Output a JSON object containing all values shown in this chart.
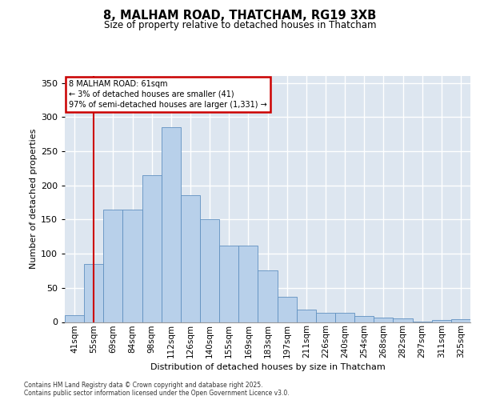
{
  "title1": "8, MALHAM ROAD, THATCHAM, RG19 3XB",
  "title2": "Size of property relative to detached houses in Thatcham",
  "xlabel": "Distribution of detached houses by size in Thatcham",
  "ylabel": "Number of detached properties",
  "categories": [
    "41sqm",
    "55sqm",
    "69sqm",
    "84sqm",
    "98sqm",
    "112sqm",
    "126sqm",
    "140sqm",
    "155sqm",
    "169sqm",
    "183sqm",
    "197sqm",
    "211sqm",
    "226sqm",
    "240sqm",
    "254sqm",
    "268sqm",
    "282sqm",
    "297sqm",
    "311sqm",
    "325sqm"
  ],
  "bar_heights": [
    10,
    85,
    165,
    165,
    215,
    285,
    185,
    150,
    112,
    112,
    75,
    37,
    18,
    14,
    14,
    9,
    6,
    5,
    1,
    3,
    4
  ],
  "bar_color": "#b8d0ea",
  "bar_edgecolor": "#6090c0",
  "bg_color": "#dde6f0",
  "grid_color": "#ffffff",
  "annotation_box_edgecolor": "#cc0000",
  "annotation_line1": "8 MALHAM ROAD: 61sqm",
  "annotation_line2": "← 3% of detached houses are smaller (41)",
  "annotation_line3": "97% of semi-detached houses are larger (1,331) →",
  "vline_x": 1.0,
  "vline_color": "#cc0000",
  "ylim": [
    0,
    360
  ],
  "yticks": [
    0,
    50,
    100,
    150,
    200,
    250,
    300,
    350
  ],
  "footer1": "Contains HM Land Registry data © Crown copyright and database right 2025.",
  "footer2": "Contains public sector information licensed under the Open Government Licence v3.0."
}
